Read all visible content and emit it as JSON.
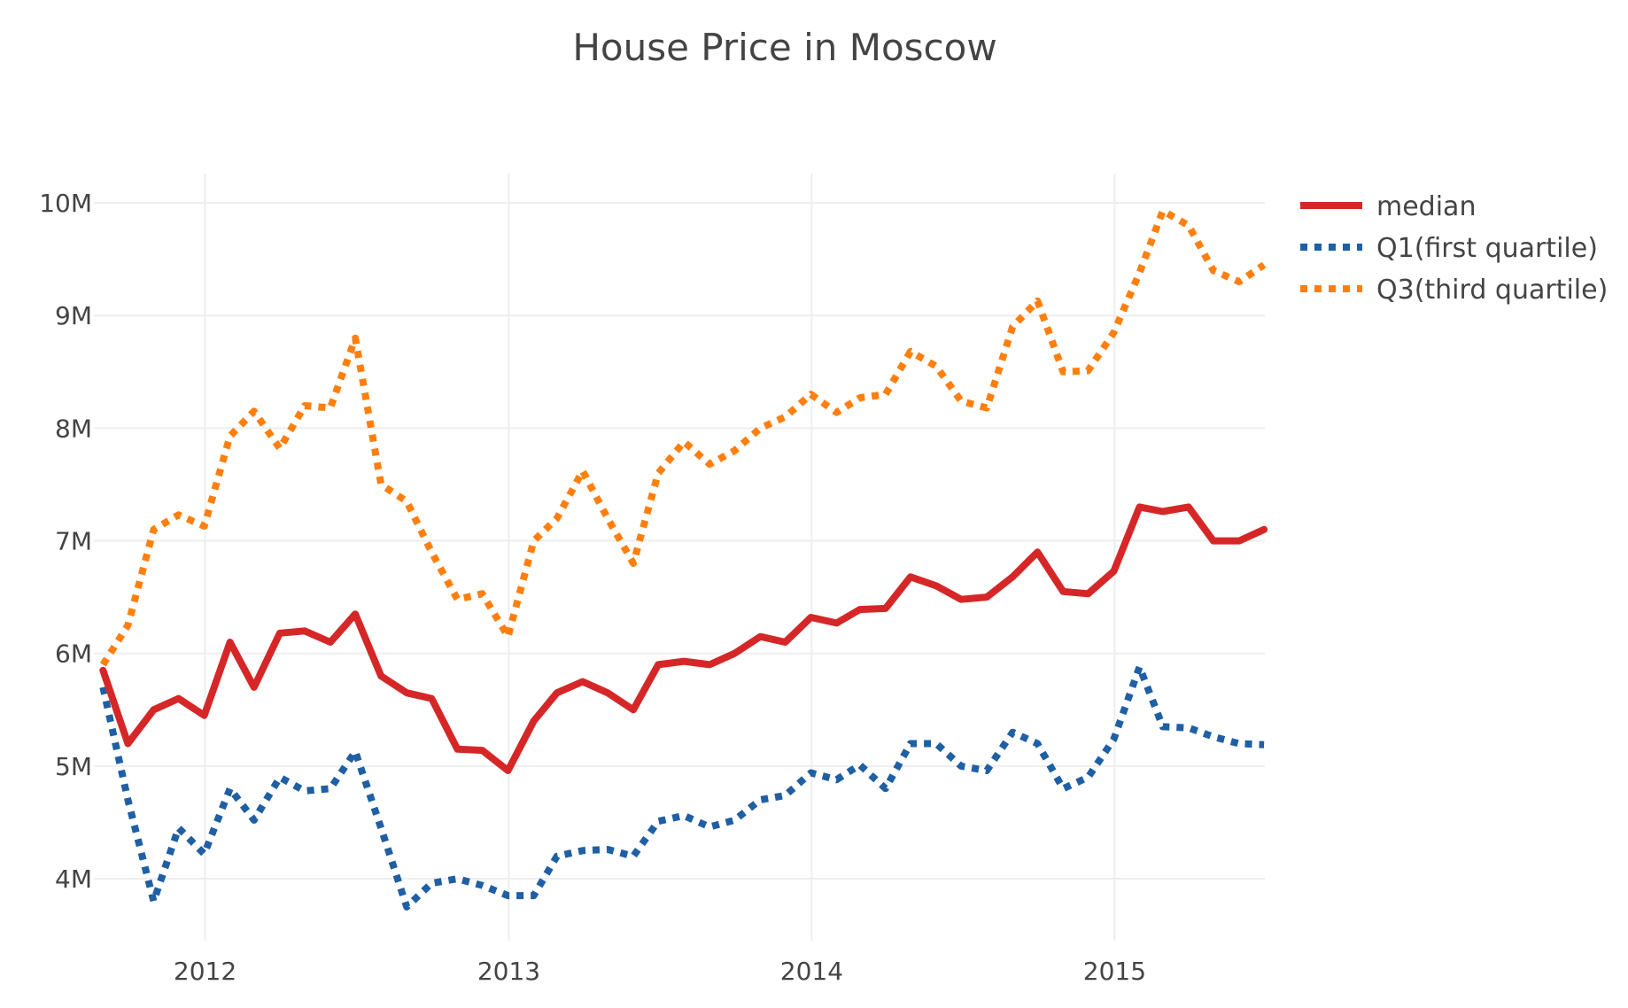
{
  "chart_data": {
    "type": "line",
    "title": "House Price in Moscow",
    "xlabel": "",
    "ylabel": "",
    "x_range": [
      "2011-08-20",
      "2015-07-01"
    ],
    "xticks": [
      {
        "date": "2012-01-01",
        "label": "2012"
      },
      {
        "date": "2013-01-01",
        "label": "2013"
      },
      {
        "date": "2014-01-01",
        "label": "2014"
      },
      {
        "date": "2015-01-01",
        "label": "2015"
      }
    ],
    "ylim": [
      3450000,
      10260000
    ],
    "yticks": [
      {
        "value": 4000000,
        "label": "4M"
      },
      {
        "value": 5000000,
        "label": "5M"
      },
      {
        "value": 6000000,
        "label": "6M"
      },
      {
        "value": 7000000,
        "label": "7M"
      },
      {
        "value": 8000000,
        "label": "8M"
      },
      {
        "value": 9000000,
        "label": "9M"
      },
      {
        "value": 10000000,
        "label": "10M"
      }
    ],
    "grid": true,
    "legend_position": "top-right",
    "x": [
      "2011-08-31",
      "2011-09-30",
      "2011-10-31",
      "2011-11-30",
      "2011-12-31",
      "2012-01-31",
      "2012-02-29",
      "2012-03-31",
      "2012-04-30",
      "2012-05-31",
      "2012-06-30",
      "2012-07-31",
      "2012-08-31",
      "2012-09-30",
      "2012-10-31",
      "2012-11-30",
      "2012-12-31",
      "2013-01-31",
      "2013-02-28",
      "2013-03-31",
      "2013-04-30",
      "2013-05-31",
      "2013-06-30",
      "2013-07-31",
      "2013-08-31",
      "2013-09-30",
      "2013-10-31",
      "2013-11-30",
      "2013-12-31",
      "2014-01-31",
      "2014-02-28",
      "2014-03-31",
      "2014-04-30",
      "2014-05-31",
      "2014-06-30",
      "2014-07-31",
      "2014-08-31",
      "2014-09-30",
      "2014-10-31",
      "2014-11-30",
      "2014-12-31",
      "2015-01-31",
      "2015-02-28",
      "2015-03-31",
      "2015-04-30",
      "2015-05-31",
      "2015-06-30"
    ],
    "series": [
      {
        "name": "median",
        "color": "#d62728",
        "dash": "solid",
        "values": [
          5850000,
          5200000,
          5500000,
          5600000,
          5450000,
          6100000,
          5700000,
          6180000,
          6200000,
          6100000,
          6350000,
          5800000,
          5650000,
          5600000,
          5150000,
          5140000,
          4960000,
          5400000,
          5650000,
          5750000,
          5650000,
          5500000,
          5900000,
          5930000,
          5900000,
          6000000,
          6150000,
          6100000,
          6320000,
          6270000,
          6390000,
          6400000,
          6680000,
          6600000,
          6480000,
          6500000,
          6680000,
          6900000,
          6550000,
          6530000,
          6730000,
          7300000,
          7260000,
          7300000,
          7000000,
          7000000,
          7100000
        ]
      },
      {
        "name": "Q1(first quartile)",
        "color": "#1f5fa4",
        "dash": "dot",
        "values": [
          5700000,
          4700000,
          3800000,
          4450000,
          4220000,
          4800000,
          4520000,
          4900000,
          4780000,
          4800000,
          5130000,
          4450000,
          3750000,
          3960000,
          4000000,
          3940000,
          3850000,
          3850000,
          4200000,
          4250000,
          4260000,
          4200000,
          4510000,
          4560000,
          4460000,
          4520000,
          4700000,
          4740000,
          4940000,
          4880000,
          5010000,
          4800000,
          5200000,
          5200000,
          5000000,
          4960000,
          5300000,
          5200000,
          4800000,
          4900000,
          5240000,
          5880000,
          5350000,
          5340000,
          5260000,
          5200000,
          5190000
        ]
      },
      {
        "name": "Q3(third quartile)",
        "color": "#ff7f0e",
        "dash": "dot",
        "values": [
          5900000,
          6250000,
          7100000,
          7230000,
          7130000,
          7930000,
          8150000,
          7820000,
          8200000,
          8180000,
          8800000,
          7500000,
          7350000,
          6900000,
          6480000,
          6530000,
          6150000,
          7000000,
          7200000,
          7620000,
          7200000,
          6800000,
          7600000,
          7880000,
          7680000,
          7800000,
          8000000,
          8100000,
          8300000,
          8140000,
          8270000,
          8300000,
          8680000,
          8550000,
          8240000,
          8180000,
          8900000,
          9130000,
          8500000,
          8510000,
          8850000,
          9380000,
          9930000,
          9800000,
          9400000,
          9300000,
          9450000
        ]
      }
    ]
  }
}
